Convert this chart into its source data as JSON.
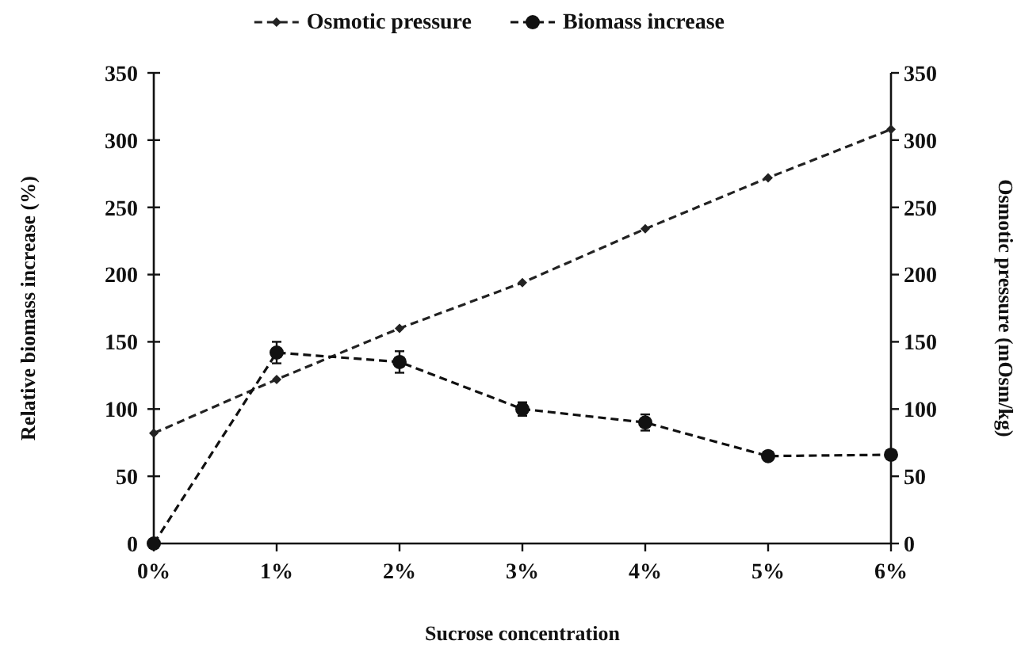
{
  "chart_data": {
    "type": "line",
    "xlabel": "Sucrose concentration",
    "ylabel": "Relative biomass increase (%)",
    "y2label": "Osmotic pressure (mOsm/kg)",
    "categories": [
      "0%",
      "1%",
      "2%",
      "3%",
      "4%",
      "5%",
      "6%"
    ],
    "series": [
      {
        "name": "Osmotic pressure",
        "color": "#222222",
        "axis": "y2",
        "marker": "diamond",
        "values": [
          82,
          122,
          160,
          194,
          234,
          272,
          308
        ]
      },
      {
        "name": "Biomass increase",
        "color": "#111111",
        "marker": "circle",
        "values": [
          0,
          142,
          135,
          100,
          90,
          65,
          66
        ],
        "errors": [
          null,
          8,
          8,
          5,
          6,
          3,
          3
        ]
      }
    ],
    "ylim": [
      0,
      350
    ],
    "yticks": [
      0,
      50,
      100,
      150,
      200,
      250,
      300,
      350
    ],
    "y2lim": [
      0,
      350
    ],
    "y2ticks": [
      0,
      50,
      100,
      150,
      200,
      250,
      300,
      350
    ],
    "legend": "top",
    "line_style": "dashed",
    "grid": false
  }
}
